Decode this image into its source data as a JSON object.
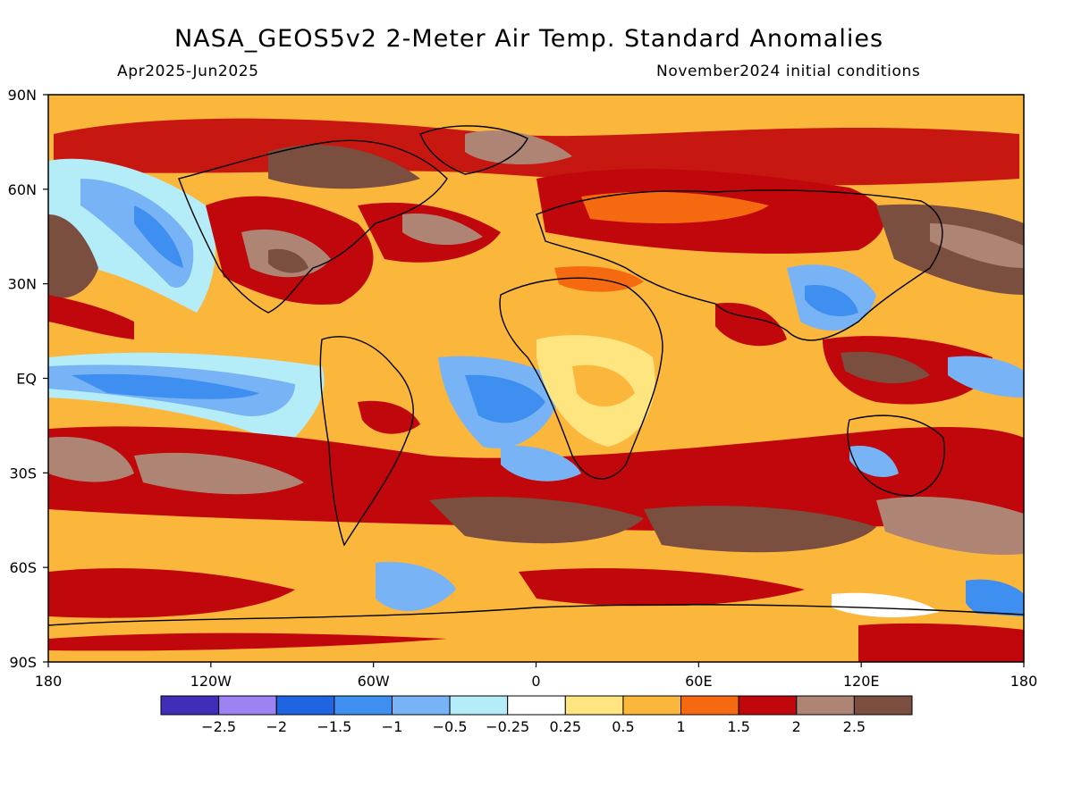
{
  "title": "NASA_GEOS5v2 2-Meter Air Temp. Standard Anomalies",
  "period": "Apr2025-Jun2025",
  "init": "November2024 initial conditions",
  "lat_labels": [
    "90N",
    "60N",
    "30N",
    "EQ",
    "30S",
    "60S",
    "90S"
  ],
  "lon_labels": [
    "180",
    "120W",
    "60W",
    "0",
    "60E",
    "120E",
    "180"
  ],
  "legend": {
    "colors": [
      "#3f2fb8",
      "#9c82f2",
      "#1f64e0",
      "#3f8ff0",
      "#78b4f5",
      "#b4ecf8",
      "#ffffff",
      "#ffe57f",
      "#fbb63c",
      "#f56a10",
      "#c0070b",
      "#ae8474",
      "#7a4f40"
    ],
    "labels": [
      "-2.5",
      "-2",
      "-1.5",
      "-1",
      "-0.5",
      "-0.25",
      "0.25",
      "0.5",
      "1",
      "1.5",
      "2",
      "2.5"
    ]
  }
}
